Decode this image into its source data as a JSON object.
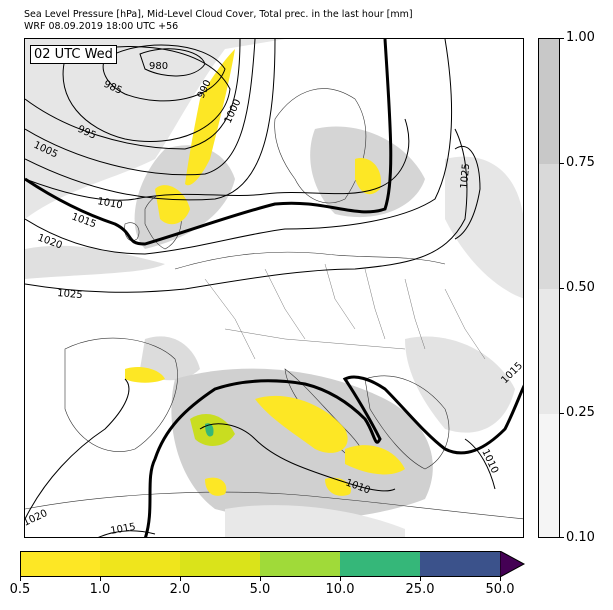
{
  "header": {
    "title_line1": "Sea Level Pressure [hPa], Mid-Level Cloud Cover, Total prec. in the last hour [mm]",
    "title_line2": "WRF 08.09.2019 18:00 UTC +56"
  },
  "map": {
    "time_label": "02 UTC Wed",
    "colors": {
      "land": "#ffffff",
      "cloud_light": "#e6e6e6",
      "cloud_dark": "#c8c8c8",
      "isobar": "#000000",
      "precip_light": "#fde725",
      "precip_mid": "#c9dd20",
      "precip_heavy": "#35b779"
    },
    "isobar_labels": [
      "980",
      "985",
      "990",
      "1000",
      "995",
      "1005",
      "1010",
      "1015",
      "1020",
      "1025",
      "1025",
      "1015",
      "1010",
      "1010",
      "1020",
      "1015"
    ]
  },
  "cloud_colorbar": {
    "labels": [
      "1.00",
      "0.75",
      "0.50",
      "0.25",
      "0.10"
    ],
    "colors": [
      "#c8c8c8",
      "#d9d9d9",
      "#e8e8e8",
      "#f5f5f5"
    ]
  },
  "precip_colorbar": {
    "labels": [
      "0.5",
      "1.0",
      "2.0",
      "5.0",
      "10.0",
      "25.0",
      "50.0"
    ],
    "colors": [
      "#fde725",
      "#efe51c",
      "#dae31a",
      "#a0da39",
      "#35b779",
      "#3b528b",
      "#440154"
    ]
  }
}
